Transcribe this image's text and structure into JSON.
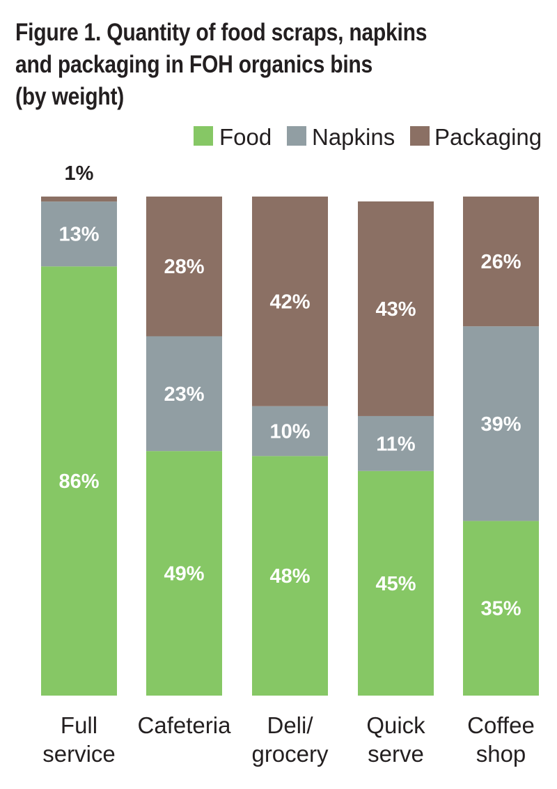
{
  "title_lines": [
    "Figure 1. Quantity of food scraps, napkins",
    "and packaging in FOH organics bins",
    "(by weight)"
  ],
  "chart_data": {
    "type": "bar",
    "stacked": true,
    "title": "Figure 1. Quantity of food scraps, napkins and packaging in FOH organics bins (by weight)",
    "categories": [
      [
        "Full",
        "service"
      ],
      [
        "Cafeteria"
      ],
      [
        "Deli/",
        "grocery"
      ],
      [
        "Quick",
        "serve"
      ],
      [
        "Coffee",
        "shop"
      ]
    ],
    "series": [
      {
        "name": "Food",
        "color": "#86c765",
        "values": [
          86,
          49,
          48,
          45,
          35
        ]
      },
      {
        "name": "Napkins",
        "color": "#919ea3",
        "values": [
          13,
          23,
          10,
          11,
          39
        ]
      },
      {
        "name": "Packaging",
        "color": "#8b7064",
        "values": [
          1,
          28,
          42,
          43,
          26
        ]
      }
    ],
    "data_labels": [
      [
        "86%",
        "13%",
        "1%"
      ],
      [
        "49%",
        "23%",
        "28%"
      ],
      [
        "48%",
        "10%",
        "42%"
      ],
      [
        "45%",
        "11%",
        "43%"
      ],
      [
        "35%",
        "39%",
        "26%"
      ]
    ],
    "legend_position": "top-right",
    "unit": "%",
    "ylim": [
      0,
      100
    ],
    "grid": false,
    "axes_visible": false
  }
}
